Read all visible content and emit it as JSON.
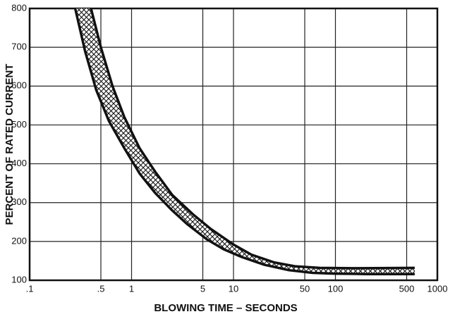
{
  "chart_data": {
    "type": "band",
    "xlabel": "BLOWING TIME – SECONDS",
    "ylabel": "PERCENT OF RATED CURRENT",
    "xscale": "log",
    "xlim": [
      0.1,
      1000
    ],
    "xticks": [
      {
        "value": 0.1,
        "label": ".1"
      },
      {
        "value": 0.5,
        "label": ".5"
      },
      1,
      5,
      10,
      50,
      100,
      500,
      1000
    ],
    "ylim": [
      100,
      800
    ],
    "yticks": [
      100,
      200,
      300,
      400,
      500,
      600,
      700,
      800
    ],
    "grid": true,
    "color": "#111111",
    "series": [
      {
        "color": "#111111",
        "x": [
          0.28,
          0.35,
          0.45,
          0.6,
          0.85,
          1.2,
          1.7,
          2.5,
          3.5,
          5.5,
          8,
          12,
          20,
          35,
          60,
          100,
          200,
          600
        ],
        "values": [
          800,
          690,
          590,
          510,
          440,
          375,
          325,
          280,
          245,
          205,
          180,
          160,
          140,
          126,
          119,
          117,
          116,
          116
        ]
      },
      {
        "color": "#111111",
        "x": [
          0.4,
          0.5,
          0.65,
          0.85,
          1.2,
          1.7,
          2.5,
          4,
          6,
          10,
          15,
          25,
          40,
          70,
          150,
          600
        ],
        "values": [
          800,
          700,
          600,
          520,
          440,
          380,
          320,
          270,
          232,
          192,
          166,
          146,
          136,
          132,
          131,
          132
        ]
      }
    ]
  }
}
